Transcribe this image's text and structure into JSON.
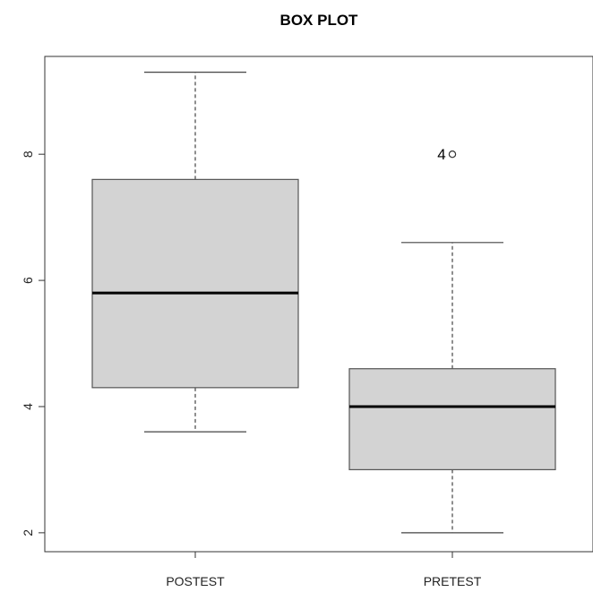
{
  "chart_data": {
    "type": "box",
    "title": "BOX PLOT",
    "xlabel": "",
    "ylabel": "",
    "categories": [
      "POSTEST",
      "PRETEST"
    ],
    "boxes": [
      {
        "category": "POSTEST",
        "whisker_low": 3.6,
        "q1": 4.3,
        "median": 5.8,
        "q3": 7.6,
        "whisker_high": 9.3,
        "outliers": []
      },
      {
        "category": "PRETEST",
        "whisker_low": 2.0,
        "q1": 3.0,
        "median": 4.0,
        "q3": 4.6,
        "whisker_high": 6.6,
        "outliers": [
          {
            "value": 8.0,
            "label": "4"
          }
        ]
      }
    ],
    "y_ticks": [
      2,
      4,
      6,
      8
    ],
    "ylim": [
      1.7,
      9.55
    ],
    "grid": false,
    "box_fill": "#d3d3d3",
    "line_color": "#000000",
    "whisker_color": "#444444"
  }
}
